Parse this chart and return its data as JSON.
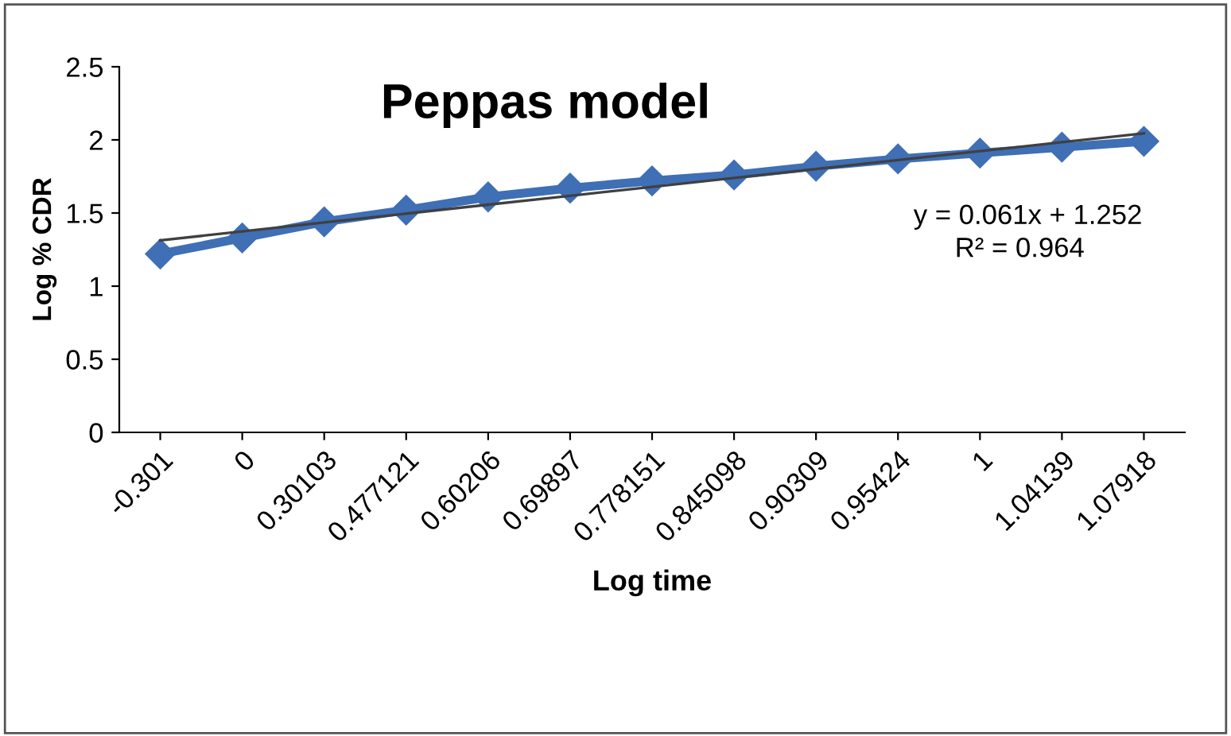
{
  "chart_data": {
    "type": "line",
    "title": "Peppas model",
    "xlabel": "Log time",
    "ylabel": "Log % CDR",
    "categories": [
      "-0.301",
      "0",
      "0.30103",
      "0.477121",
      "0.60206",
      "0.69897",
      "0.778151",
      "0.845098",
      "0.90309",
      "0.95424",
      "1",
      "1.04139",
      "1.07918"
    ],
    "series": [
      {
        "color": "#3f6fb5",
        "marker": "diamond",
        "values": [
          1.22,
          1.33,
          1.44,
          1.52,
          1.61,
          1.67,
          1.72,
          1.76,
          1.82,
          1.87,
          1.91,
          1.95,
          1.99
        ]
      },
      {
        "color": "#404040",
        "marker": "none",
        "values": [
          1.313,
          1.374,
          1.435,
          1.496,
          1.557,
          1.618,
          1.679,
          1.74,
          1.801,
          1.862,
          1.923,
          1.984,
          2.045
        ]
      }
    ],
    "ylim": [
      0,
      2.5
    ],
    "yticks": [
      0,
      0.5,
      1,
      1.5,
      2,
      2.5
    ],
    "grid": false,
    "legend": false,
    "annotations": [
      "y = 0.061x + 1.252",
      "R² = 0.964"
    ]
  }
}
